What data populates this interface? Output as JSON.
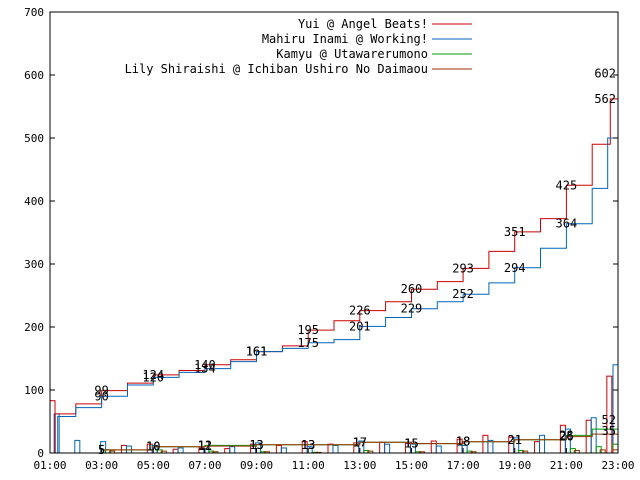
{
  "chart_data": {
    "type": "line",
    "x_ticks": [
      "01:00",
      "03:00",
      "05:00",
      "07:00",
      "09:00",
      "11:00",
      "13:00",
      "15:00",
      "17:00",
      "19:00",
      "21:00",
      "23:00"
    ],
    "x_range": [
      "01:00",
      "23:00"
    ],
    "ylim": [
      0,
      700
    ],
    "y_ticks": [
      0,
      100,
      200,
      300,
      400,
      500,
      600,
      700
    ],
    "grid": false,
    "legend_position": "top-right",
    "series": [
      {
        "name": "Yui @ Angel Beats!",
        "color": "#cc0000",
        "cumulative": [
          [
            1,
            0
          ],
          [
            1.2,
            62
          ],
          [
            2,
            78
          ],
          [
            3,
            99
          ],
          [
            4,
            111
          ],
          [
            5,
            124
          ],
          [
            6,
            131
          ],
          [
            7,
            140
          ],
          [
            8,
            148
          ],
          [
            9,
            161
          ],
          [
            10,
            170
          ],
          [
            11,
            195
          ],
          [
            12,
            210
          ],
          [
            13,
            226
          ],
          [
            14,
            240
          ],
          [
            15,
            260
          ],
          [
            16,
            272
          ],
          [
            17,
            293
          ],
          [
            18,
            320
          ],
          [
            19,
            351
          ],
          [
            20,
            372
          ],
          [
            21,
            425
          ],
          [
            22,
            490
          ],
          [
            22.7,
            562
          ],
          [
            23,
            602
          ]
        ],
        "point_labels": [
          [
            3,
            99
          ],
          [
            5,
            124
          ],
          [
            7,
            140
          ],
          [
            9,
            161
          ],
          [
            11,
            195
          ],
          [
            13,
            226
          ],
          [
            15,
            260
          ],
          [
            17,
            293
          ],
          [
            19,
            351
          ],
          [
            21,
            425
          ],
          [
            23,
            602
          ]
        ],
        "hourly": [
          [
            1,
            83
          ],
          [
            2,
            0
          ],
          [
            3,
            0
          ],
          [
            4,
            12
          ],
          [
            5,
            14
          ],
          [
            6,
            6
          ],
          [
            7,
            8
          ],
          [
            8,
            7
          ],
          [
            9,
            14
          ],
          [
            10,
            12
          ],
          [
            11,
            18
          ],
          [
            12,
            14
          ],
          [
            13,
            16
          ],
          [
            14,
            17
          ],
          [
            15,
            15
          ],
          [
            16,
            19
          ],
          [
            17,
            22
          ],
          [
            18,
            28
          ],
          [
            19,
            25
          ],
          [
            20,
            18
          ],
          [
            21,
            44
          ],
          [
            22,
            52
          ],
          [
            22.8,
            122
          ]
        ]
      },
      {
        "name": "Mahiru Inami @ Working!",
        "color": "#0066bb",
        "cumulative": [
          [
            1,
            0
          ],
          [
            1.3,
            58
          ],
          [
            2,
            72
          ],
          [
            3,
            90
          ],
          [
            4,
            108
          ],
          [
            5,
            120
          ],
          [
            6,
            128
          ],
          [
            7,
            134
          ],
          [
            8,
            145
          ],
          [
            9,
            161
          ],
          [
            10,
            166
          ],
          [
            11,
            175
          ],
          [
            12,
            180
          ],
          [
            13,
            201
          ],
          [
            14,
            215
          ],
          [
            15,
            229
          ],
          [
            16,
            240
          ],
          [
            17,
            252
          ],
          [
            18,
            270
          ],
          [
            19,
            294
          ],
          [
            20,
            325
          ],
          [
            21,
            364
          ],
          [
            22,
            420
          ],
          [
            22.6,
            500
          ],
          [
            23,
            562
          ]
        ],
        "point_labels": [
          [
            3,
            90
          ],
          [
            5,
            120
          ],
          [
            7,
            134
          ],
          [
            9,
            161
          ],
          [
            11,
            175
          ],
          [
            13,
            201
          ],
          [
            15,
            229
          ],
          [
            17,
            252
          ],
          [
            19,
            294
          ],
          [
            21,
            364
          ],
          [
            23,
            562
          ]
        ],
        "hourly": [
          [
            1.2,
            62
          ],
          [
            2,
            20
          ],
          [
            3,
            18
          ],
          [
            4,
            11
          ],
          [
            5,
            12
          ],
          [
            6,
            8
          ],
          [
            7,
            6
          ],
          [
            8,
            10
          ],
          [
            9,
            16
          ],
          [
            10,
            8
          ],
          [
            11,
            10
          ],
          [
            12,
            12
          ],
          [
            13,
            19
          ],
          [
            14,
            14
          ],
          [
            15,
            14
          ],
          [
            16,
            11
          ],
          [
            17,
            12
          ],
          [
            18,
            20
          ],
          [
            19,
            24
          ],
          [
            20,
            28
          ],
          [
            21,
            38
          ],
          [
            22,
            56
          ],
          [
            22.9,
            140
          ]
        ]
      },
      {
        "name": "Kamyu @ Utawarerumono",
        "color": "#009900",
        "cumulative": [
          [
            1,
            0
          ],
          [
            3,
            5
          ],
          [
            5,
            10
          ],
          [
            7,
            12
          ],
          [
            9,
            13
          ],
          [
            11,
            13
          ],
          [
            13,
            17
          ],
          [
            15,
            15
          ],
          [
            17,
            18
          ],
          [
            19,
            21
          ],
          [
            21,
            28
          ],
          [
            22,
            38
          ],
          [
            23,
            52
          ]
        ],
        "point_labels": [
          [
            3,
            5
          ],
          [
            5,
            10
          ],
          [
            7,
            12
          ],
          [
            9,
            13
          ],
          [
            11,
            13
          ],
          [
            13,
            17
          ],
          [
            15,
            15
          ],
          [
            17,
            18
          ],
          [
            19,
            21
          ],
          [
            21,
            28
          ],
          [
            23,
            52
          ]
        ],
        "hourly": [
          [
            3,
            5
          ],
          [
            5,
            5
          ],
          [
            7,
            3
          ],
          [
            9,
            2
          ],
          [
            11,
            1
          ],
          [
            13,
            4
          ],
          [
            15,
            2
          ],
          [
            17,
            3
          ],
          [
            19,
            4
          ],
          [
            21,
            7
          ],
          [
            22,
            10
          ],
          [
            23,
            14
          ]
        ]
      },
      {
        "name": "Lily Shiraishi @ Ichiban Ushiro No Daimaou",
        "color": "#993300",
        "cumulative": [
          [
            1,
            0
          ],
          [
            3,
            5
          ],
          [
            5,
            10
          ],
          [
            7,
            11
          ],
          [
            9,
            13
          ],
          [
            11,
            13
          ],
          [
            13,
            17
          ],
          [
            15,
            15
          ],
          [
            17,
            18
          ],
          [
            19,
            21
          ],
          [
            21,
            26
          ],
          [
            22,
            30
          ],
          [
            23,
            35
          ]
        ],
        "point_labels": [
          [
            3,
            5
          ],
          [
            5,
            10
          ],
          [
            7,
            11
          ],
          [
            9,
            13
          ],
          [
            11,
            13
          ],
          [
            13,
            17
          ],
          [
            15,
            15
          ],
          [
            17,
            18
          ],
          [
            19,
            21
          ],
          [
            21,
            26
          ],
          [
            23,
            35
          ]
        ],
        "hourly": [
          [
            3,
            3
          ],
          [
            5,
            3
          ],
          [
            7,
            2
          ],
          [
            9,
            2
          ],
          [
            11,
            1
          ],
          [
            13,
            3
          ],
          [
            15,
            2
          ],
          [
            17,
            2
          ],
          [
            19,
            3
          ],
          [
            21,
            4
          ],
          [
            22,
            5
          ],
          [
            23,
            5
          ]
        ]
      }
    ]
  }
}
